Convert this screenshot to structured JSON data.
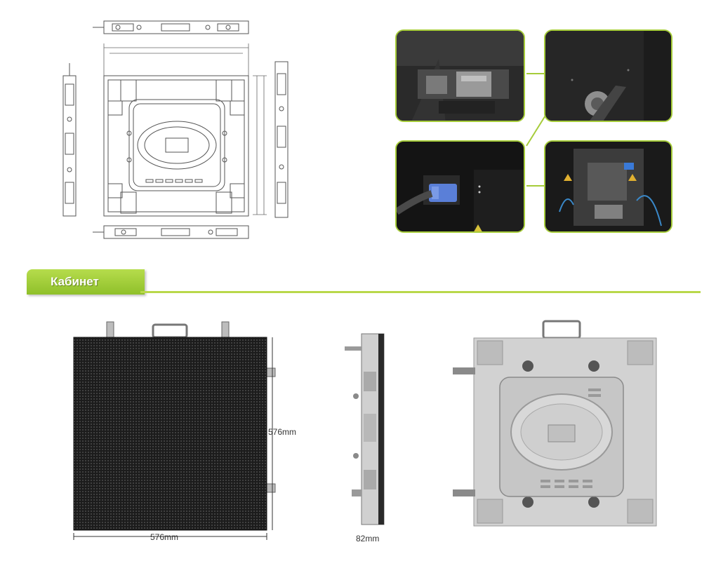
{
  "section": {
    "title": "Кабинет"
  },
  "dimensions": {
    "front_height": "576mm",
    "front_width": "576mm",
    "side_depth": "82mm"
  },
  "colors": {
    "accent": "#9cc932",
    "frame_border": "#a6cc3a",
    "panel_gray": "#c9c9c9"
  }
}
